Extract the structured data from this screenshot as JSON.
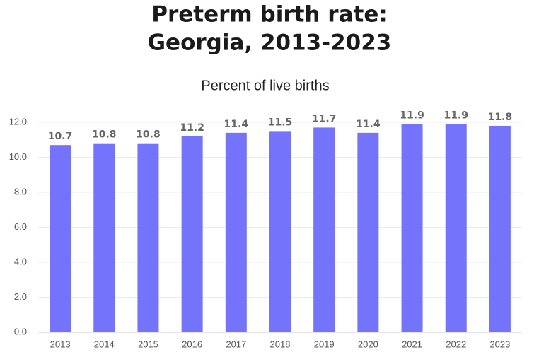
{
  "chart_data": {
    "type": "bar",
    "title": [
      "Preterm birth rate:",
      "Georgia, 2013-2023"
    ],
    "subtitle": "Percent of live births",
    "categories": [
      "2013",
      "2014",
      "2015",
      "2016",
      "2017",
      "2018",
      "2019",
      "2020",
      "2021",
      "2022",
      "2023"
    ],
    "values": [
      10.7,
      10.8,
      10.8,
      11.2,
      11.4,
      11.5,
      11.7,
      11.4,
      11.9,
      11.9,
      11.8
    ],
    "color": "#7373fb",
    "ylim": [
      0,
      12
    ],
    "yticks": [
      {
        "value": 0,
        "label": "0.0"
      },
      {
        "value": 2,
        "label": "2.0"
      },
      {
        "value": 4,
        "label": "4.0"
      },
      {
        "value": 6,
        "label": "6.0"
      },
      {
        "value": 8,
        "label": "8.0"
      },
      {
        "value": 10,
        "label": "10.0"
      },
      {
        "value": 12,
        "label": "12.0"
      }
    ],
    "grid": true
  }
}
